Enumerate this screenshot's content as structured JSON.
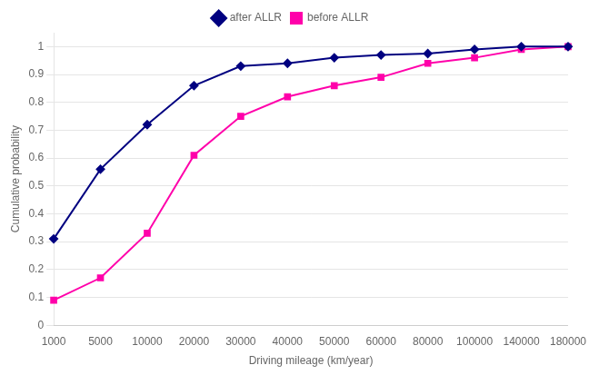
{
  "chart_data": {
    "type": "line",
    "categories": [
      "1000",
      "5000",
      "10000",
      "20000",
      "30000",
      "40000",
      "50000",
      "60000",
      "80000",
      "100000",
      "140000",
      "180000"
    ],
    "series": [
      {
        "name": "after ALLR",
        "color": "#000080",
        "marker": "diamond",
        "values": [
          0.31,
          0.56,
          0.72,
          0.86,
          0.93,
          0.94,
          0.96,
          0.97,
          0.975,
          0.99,
          1.0,
          1.0
        ]
      },
      {
        "name": "before ALLR",
        "color": "#FF00AA",
        "marker": "square",
        "values": [
          0.09,
          0.17,
          0.33,
          0.61,
          0.75,
          0.82,
          0.86,
          0.89,
          0.94,
          0.96,
          0.99,
          1.0
        ]
      }
    ],
    "xlabel": "Driving mileage (km/year)",
    "ylabel": "Cumulative probability",
    "ylim": [
      0,
      1.05
    ],
    "yticks": [
      0,
      0.1,
      0.2,
      0.3,
      0.4,
      0.5,
      0.6,
      0.7,
      0.8,
      0.9,
      1.0
    ],
    "grid": true,
    "legend": "top"
  }
}
